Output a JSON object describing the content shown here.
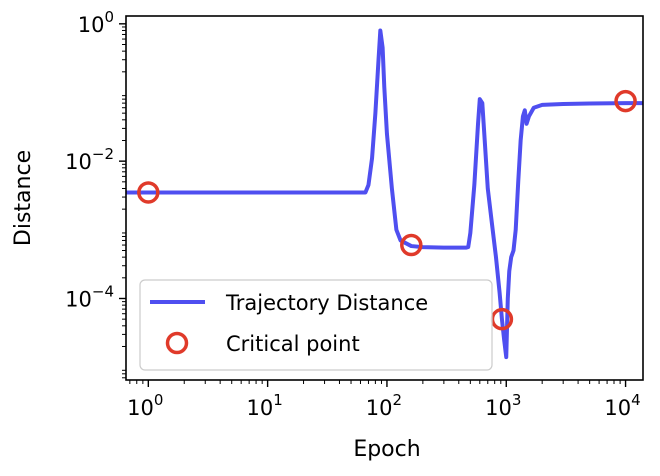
{
  "chart_data": {
    "type": "line",
    "xlabel": "Epoch",
    "ylabel": "Distance",
    "x_scale": "log",
    "y_scale": "log",
    "xlim": [
      0.65,
      14000
    ],
    "ylim": [
      6.5e-06,
      1.3
    ],
    "x_ticks": [
      {
        "value": 1,
        "base": "10",
        "exp": "0"
      },
      {
        "value": 10,
        "base": "10",
        "exp": "1"
      },
      {
        "value": 100,
        "base": "10",
        "exp": "2"
      },
      {
        "value": 1000,
        "base": "10",
        "exp": "3"
      },
      {
        "value": 10000,
        "base": "10",
        "exp": "4"
      }
    ],
    "y_ticks": [
      {
        "value": 0.0001,
        "base": "10",
        "exp": "−4"
      },
      {
        "value": 0.01,
        "base": "10",
        "exp": "−2"
      },
      {
        "value": 1,
        "base": "10",
        "exp": "0"
      }
    ],
    "series": [
      {
        "name": "Trajectory Distance",
        "color": "#4f4ff0",
        "x": [
          0.65,
          1,
          10,
          60,
          66,
          70,
          75,
          80,
          85,
          88,
          92,
          95,
          100,
          110,
          120,
          130,
          160,
          200,
          300,
          400,
          460,
          480,
          500,
          540,
          580,
          600,
          630,
          660,
          700,
          760,
          820,
          880,
          920,
          960,
          1000,
          1030,
          1060,
          1100,
          1150,
          1200,
          1260,
          1320,
          1380,
          1430,
          1480,
          1550,
          1700,
          2000,
          3000,
          5000,
          10000,
          14000
        ],
        "y": [
          0.0035,
          0.0035,
          0.0035,
          0.0035,
          0.0035,
          0.0045,
          0.011,
          0.05,
          0.3,
          0.8,
          0.45,
          0.12,
          0.025,
          0.004,
          0.001,
          0.0007,
          0.00058,
          0.00056,
          0.00055,
          0.00055,
          0.00055,
          0.00056,
          0.0009,
          0.0045,
          0.035,
          0.08,
          0.07,
          0.02,
          0.004,
          0.0012,
          0.0004,
          0.00012,
          5e-05,
          2.5e-05,
          1.4e-05,
          0.0001,
          0.00025,
          0.0004,
          0.0005,
          0.001,
          0.005,
          0.02,
          0.045,
          0.055,
          0.035,
          0.045,
          0.06,
          0.066,
          0.068,
          0.069,
          0.07,
          0.07
        ]
      },
      {
        "name": "Critical point",
        "color": "#e03a2a",
        "marker": "open-circle",
        "x": [
          1,
          160,
          920,
          10000
        ],
        "y": [
          0.0035,
          0.0006,
          5e-05,
          0.075
        ]
      }
    ],
    "legend": {
      "position": "lower-left"
    },
    "grid": false
  }
}
